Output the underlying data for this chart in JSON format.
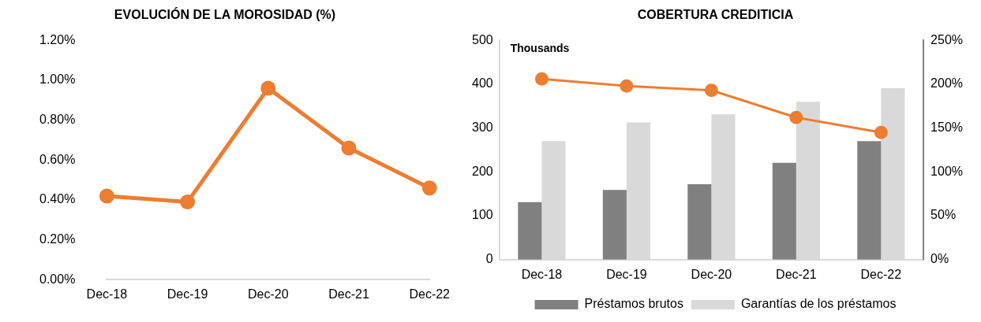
{
  "chart_data": [
    {
      "type": "line",
      "title": "EVOLUCIÓN DE LA MOROSIDAD (%)",
      "categories": [
        "Dec-18",
        "Dec-19",
        "Dec-20",
        "Dec-21",
        "Dec-22"
      ],
      "series": [
        {
          "color": "#ed7d31",
          "values": [
            0.42,
            0.39,
            0.96,
            0.66,
            0.46
          ]
        }
      ],
      "ylim": [
        0,
        1.2
      ],
      "yticks": [
        {
          "value": 0,
          "label": "0.00%"
        },
        {
          "value": 0.2,
          "label": "0.20%"
        },
        {
          "value": 0.4,
          "label": "0.40%"
        },
        {
          "value": 0.6,
          "label": "0.60%"
        },
        {
          "value": 0.8,
          "label": "0.80%"
        },
        {
          "value": 1.0,
          "label": "1.00%"
        },
        {
          "value": 1.2,
          "label": "1.20%"
        }
      ],
      "grid": false,
      "legend": false,
      "marker": "circle",
      "line_style": "solid"
    },
    {
      "type": "bar",
      "title": "COBERTURA CREDITICIA",
      "categories": [
        "Dec-18",
        "Dec-19",
        "Dec-20",
        "Dec-21",
        "Dec-22"
      ],
      "series": [
        {
          "name": "Préstamos brutos",
          "color": "#808080",
          "values": [
            131,
            159,
            172,
            221,
            270
          ]
        },
        {
          "name": "Garantías de los préstamos",
          "color": "#d9d9d9",
          "values": [
            270,
            313,
            331,
            360,
            391
          ]
        },
        {
          "type": "line",
          "axis": "y2",
          "color": "#ed7d31",
          "values": [
            206,
            198,
            193,
            162,
            145
          ]
        }
      ],
      "ylim": [
        0,
        500
      ],
      "yticks": [
        0,
        100,
        200,
        300,
        400,
        500
      ],
      "y2lim": [
        0,
        250
      ],
      "y2ticks": [
        {
          "value": 0,
          "label": "0%"
        },
        {
          "value": 50,
          "label": "50%"
        },
        {
          "value": 100,
          "label": "100%"
        },
        {
          "value": 150,
          "label": "150%"
        },
        {
          "value": 200,
          "label": "200%"
        },
        {
          "value": 250,
          "label": "250%"
        }
      ],
      "annotations": [
        "Thousands"
      ],
      "grid": false,
      "legend": "bottom",
      "marker": "circle",
      "line_style": "solid"
    }
  ]
}
